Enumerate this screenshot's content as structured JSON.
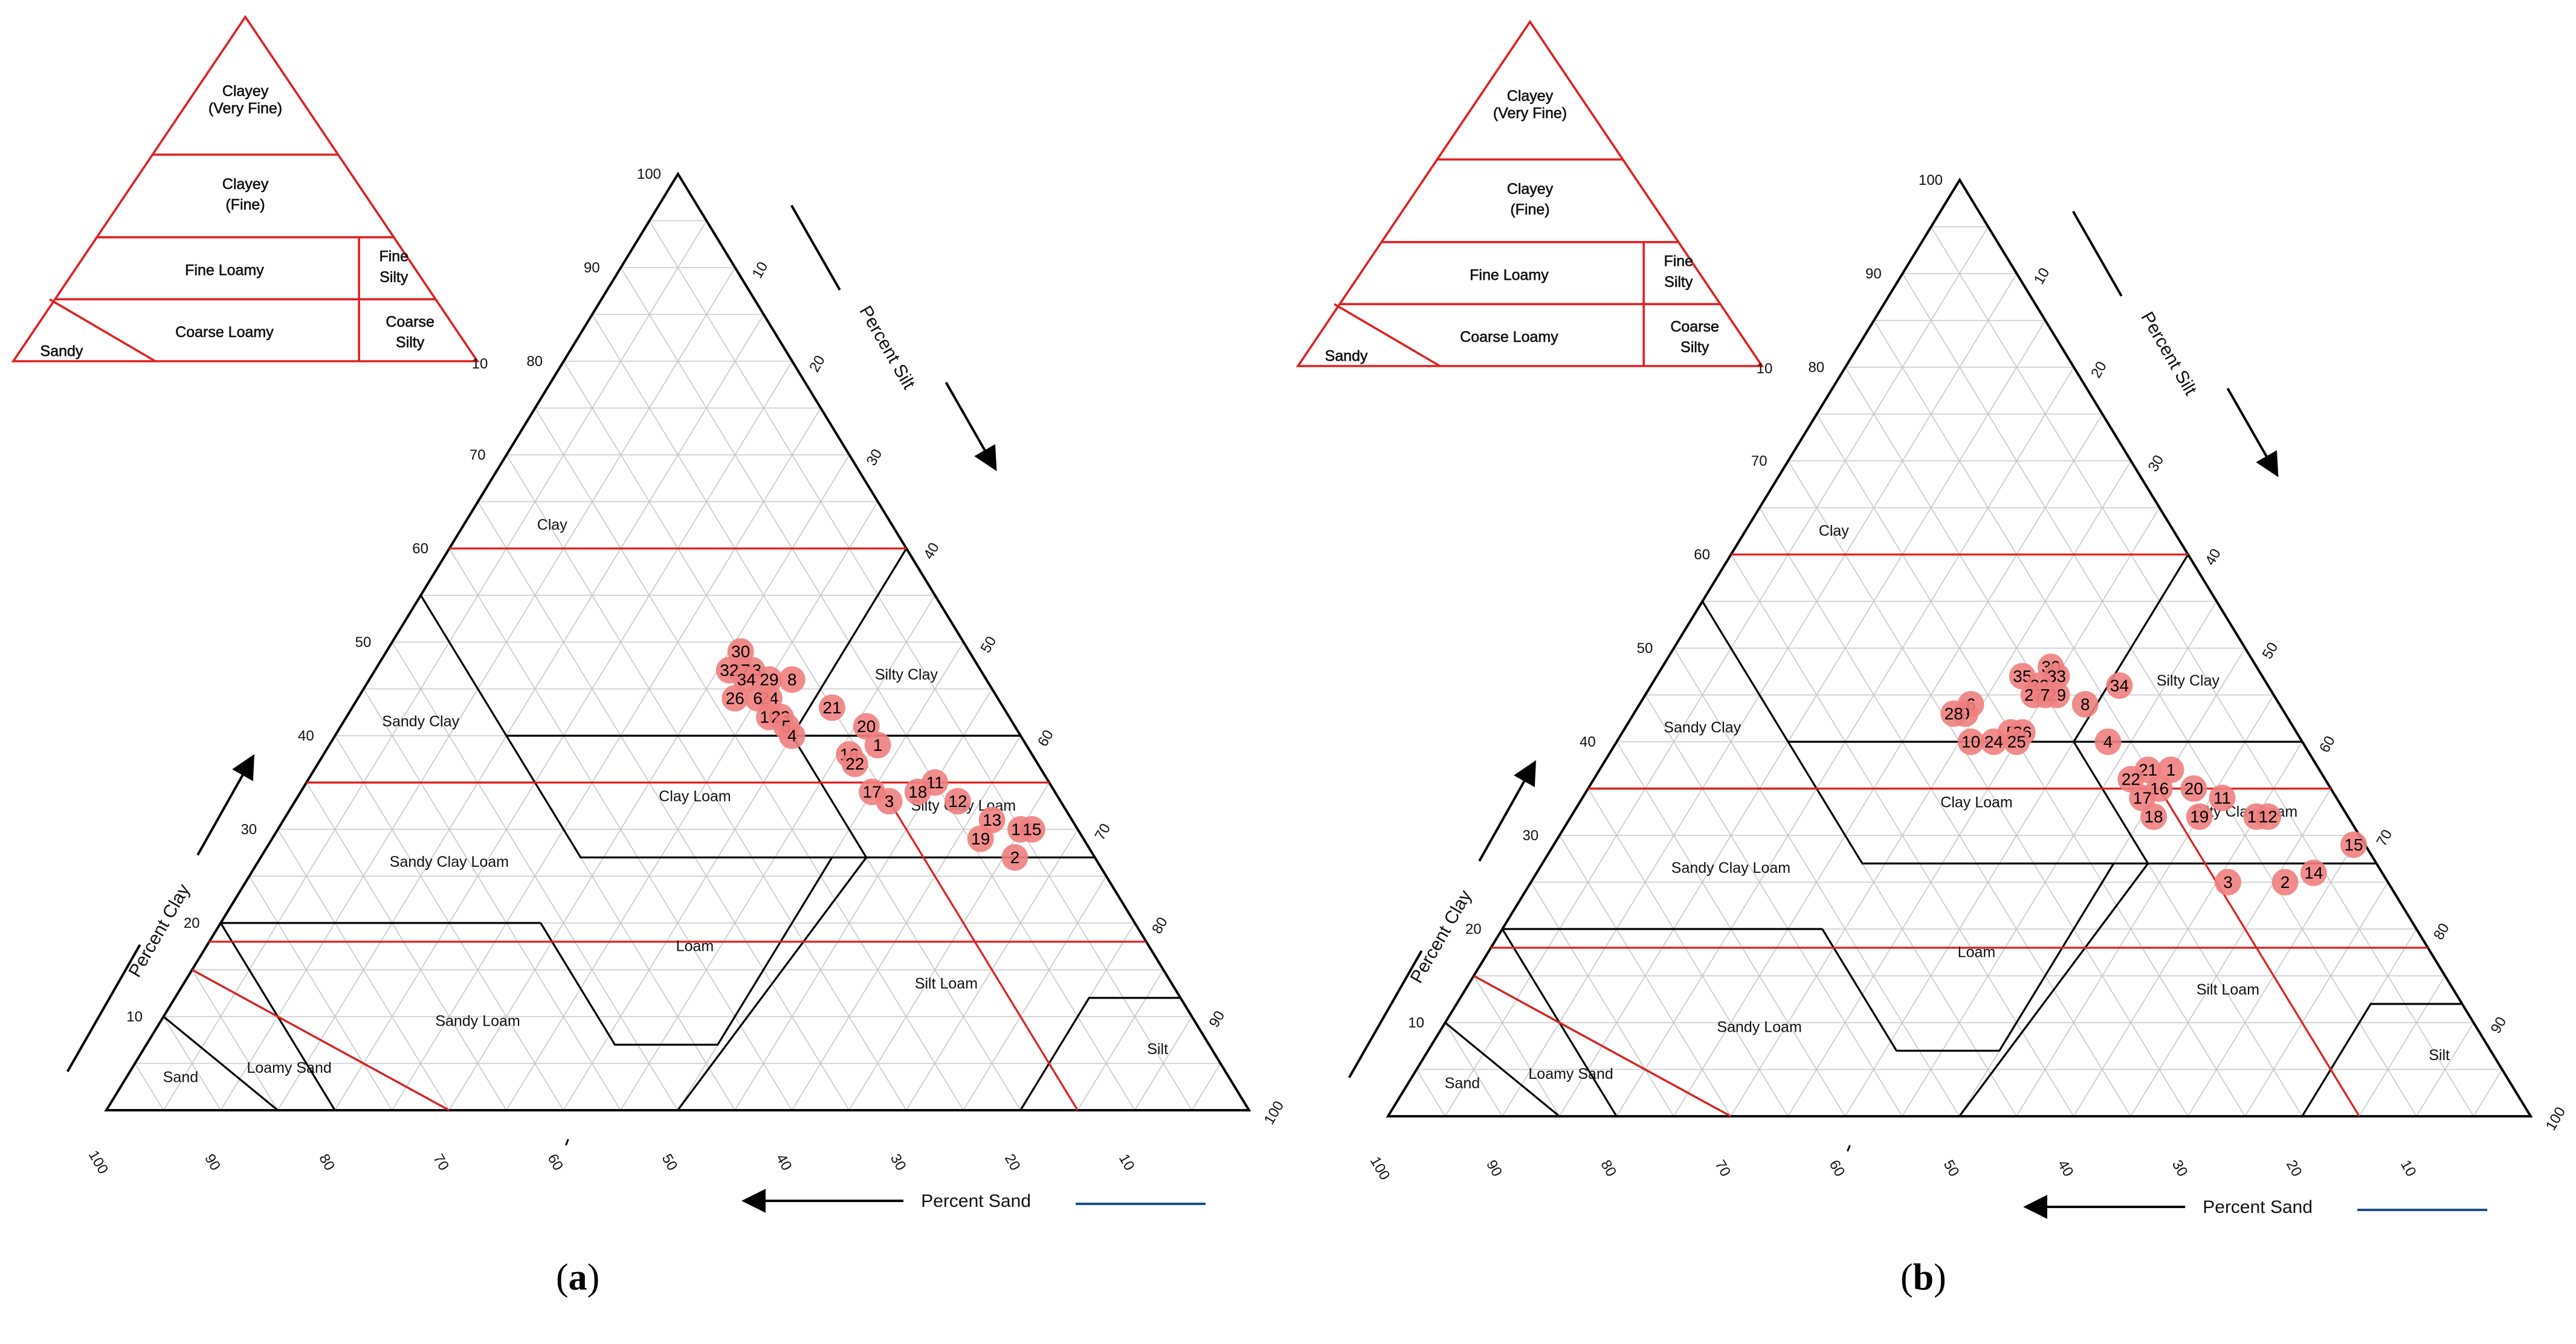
{
  "region_labels": {
    "clay": "Clay",
    "silty_clay": "Silty Clay",
    "sandy_clay": "Sandy Clay",
    "clay_loam": "Clay Loam",
    "silty_clay_loam": "Silty Clay Loam",
    "sandy_clay_loam": "Sandy Clay Loam",
    "loam": "Loam",
    "silt_loam": "Silt Loam",
    "sandy_loam": "Sandy Loam",
    "silt": "Silt",
    "sand": "Sand",
    "loamy_sand": "Loamy Sand"
  },
  "axis_titles": {
    "clay": "Percent Clay",
    "silt": "Percent Silt",
    "sand": "Percent Sand"
  },
  "inset_labels": {
    "clayey_very_fine_1": "Clayey",
    "clayey_very_fine_2": "(Very Fine)",
    "clayey_fine_1": "Clayey",
    "clayey_fine_2": "(Fine)",
    "fine_loamy": "Fine Loamy",
    "fine_silty_1": "Fine",
    "fine_silty_2": "Silty",
    "coarse_loamy": "Coarse Loamy",
    "coarse_silty_1": "Coarse",
    "coarse_silty_2": "Silty",
    "sandy": "Sandy",
    "stray_tick": "10"
  },
  "tick_values": [
    "10",
    "20",
    "30",
    "40",
    "50",
    "60",
    "70",
    "80",
    "90",
    "100"
  ],
  "panel_labels": {
    "a_open": "(",
    "a": "a",
    "a_close": ")",
    "b_open": "(",
    "b": "b",
    "b_close": ")"
  },
  "colors": {
    "triangle": "#000000",
    "grid": "#c8c8c8",
    "family_boundary": "#e02020",
    "point": "#f08080"
  },
  "chart_data": [
    {
      "type": "scatter",
      "title": "",
      "coordinate_system": "ternary (sand, silt, clay %)",
      "axes": {
        "clay": "Percent Clay",
        "silt": "Percent Silt",
        "sand": "Percent Sand",
        "range": [
          0,
          100
        ]
      },
      "points": [
        {
          "label": "30",
          "sand": 20,
          "silt": 31,
          "clay": 49
        },
        {
          "label": "33",
          "sand": 20,
          "silt": 33,
          "clay": 47
        },
        {
          "label": "27",
          "sand": 21,
          "silt": 32,
          "clay": 47
        },
        {
          "label": "32",
          "sand": 22,
          "silt": 31,
          "clay": 47
        },
        {
          "label": "8",
          "sand": 17,
          "silt": 37,
          "clay": 46
        },
        {
          "label": "34",
          "sand": 21,
          "silt": 33,
          "clay": 46
        },
        {
          "label": "29",
          "sand": 19,
          "silt": 35,
          "clay": 46
        },
        {
          "label": "24",
          "sand": 20,
          "silt": 36,
          "clay": 44
        },
        {
          "label": "26",
          "sand": 23,
          "silt": 33,
          "clay": 44
        },
        {
          "label": "6",
          "sand": 21,
          "silt": 35,
          "clay": 44
        },
        {
          "label": "21",
          "sand": 15,
          "silt": 42,
          "clay": 43
        },
        {
          "label": "10",
          "sand": 21,
          "silt": 37,
          "clay": 42
        },
        {
          "label": "23",
          "sand": 20,
          "silt": 38,
          "clay": 42
        },
        {
          "label": "5",
          "sand": 20,
          "silt": 39,
          "clay": 41
        },
        {
          "label": "4",
          "sand": 20,
          "silt": 40,
          "clay": 40
        },
        {
          "label": "20",
          "sand": 13,
          "silt": 46,
          "clay": 41
        },
        {
          "label": "1",
          "sand": 13,
          "silt": 48,
          "clay": 39
        },
        {
          "label": "16",
          "sand": 16,
          "silt": 46,
          "clay": 38
        },
        {
          "label": "22",
          "sand": 16,
          "silt": 47,
          "clay": 37
        },
        {
          "label": "11",
          "sand": 10,
          "silt": 55,
          "clay": 35
        },
        {
          "label": "17",
          "sand": 16,
          "silt": 50,
          "clay": 34
        },
        {
          "label": "18",
          "sand": 12,
          "silt": 54,
          "clay": 34
        },
        {
          "label": "12",
          "sand": 9,
          "silt": 58,
          "clay": 33
        },
        {
          "label": "3",
          "sand": 15,
          "silt": 52,
          "clay": 33
        },
        {
          "label": "13",
          "sand": 7,
          "silt": 62,
          "clay": 31
        },
        {
          "label": "14",
          "sand": 5,
          "silt": 65,
          "clay": 30
        },
        {
          "label": "15",
          "sand": 4,
          "silt": 66,
          "clay": 30
        },
        {
          "label": "19",
          "sand": 9,
          "silt": 62,
          "clay": 29
        },
        {
          "label": "2",
          "sand": 7,
          "silt": 66,
          "clay": 27
        }
      ]
    },
    {
      "type": "scatter",
      "title": "",
      "coordinate_system": "ternary (sand, silt, clay %)",
      "axes": {
        "clay": "Percent Clay",
        "silt": "Percent Silt",
        "sand": "Percent Sand",
        "range": [
          0,
          100
        ]
      },
      "points": [
        {
          "label": "30",
          "sand": 18,
          "silt": 34,
          "clay": 48
        },
        {
          "label": "33",
          "sand": 18,
          "silt": 35,
          "clay": 47
        },
        {
          "label": "35",
          "sand": 21,
          "silt": 32,
          "clay": 47
        },
        {
          "label": "34",
          "sand": 13,
          "silt": 41,
          "clay": 46
        },
        {
          "label": "32",
          "sand": 20,
          "silt": 34,
          "clay": 46
        },
        {
          "label": "29",
          "sand": 19,
          "silt": 36,
          "clay": 45
        },
        {
          "label": "27",
          "sand": 21,
          "silt": 34,
          "clay": 45
        },
        {
          "label": "7",
          "sand": 20,
          "silt": 35,
          "clay": 45
        },
        {
          "label": "8",
          "sand": 17,
          "silt": 39,
          "clay": 44
        },
        {
          "label": "6",
          "sand": 27,
          "silt": 29,
          "clay": 44
        },
        {
          "label": "9",
          "sand": 28,
          "silt": 29,
          "clay": 43
        },
        {
          "label": "28",
          "sand": 29,
          "silt": 28,
          "clay": 43
        },
        {
          "label": "5",
          "sand": 25,
          "silt": 34,
          "clay": 41
        },
        {
          "label": "26",
          "sand": 24,
          "silt": 35,
          "clay": 41
        },
        {
          "label": "10",
          "sand": 29,
          "silt": 31,
          "clay": 40
        },
        {
          "label": "24",
          "sand": 27,
          "silt": 33,
          "clay": 40
        },
        {
          "label": "25",
          "sand": 25,
          "silt": 35,
          "clay": 40
        },
        {
          "label": "4",
          "sand": 17,
          "silt": 43,
          "clay": 40
        },
        {
          "label": "21",
          "sand": 15,
          "silt": 48,
          "clay": 37
        },
        {
          "label": "1",
          "sand": 13,
          "silt": 50,
          "clay": 37
        },
        {
          "label": "22",
          "sand": 17,
          "silt": 47,
          "clay": 36
        },
        {
          "label": "16",
          "sand": 15,
          "silt": 50,
          "clay": 35
        },
        {
          "label": "20",
          "sand": 12,
          "silt": 53,
          "clay": 35
        },
        {
          "label": "11",
          "sand": 10,
          "silt": 56,
          "clay": 34
        },
        {
          "label": "17",
          "sand": 17,
          "silt": 49,
          "clay": 34
        },
        {
          "label": "18",
          "sand": 17,
          "silt": 51,
          "clay": 32
        },
        {
          "label": "19",
          "sand": 13,
          "silt": 55,
          "clay": 32
        },
        {
          "label": "13",
          "sand": 8,
          "silt": 60,
          "clay": 32
        },
        {
          "label": "12",
          "sand": 7,
          "silt": 61,
          "clay": 32
        },
        {
          "label": "15",
          "sand": 1,
          "silt": 70,
          "clay": 29
        },
        {
          "label": "3",
          "sand": 14,
          "silt": 61,
          "clay": 25
        },
        {
          "label": "2",
          "sand": 9,
          "silt": 66,
          "clay": 25
        },
        {
          "label": "14",
          "sand": 6,
          "silt": 68,
          "clay": 26
        }
      ]
    }
  ]
}
